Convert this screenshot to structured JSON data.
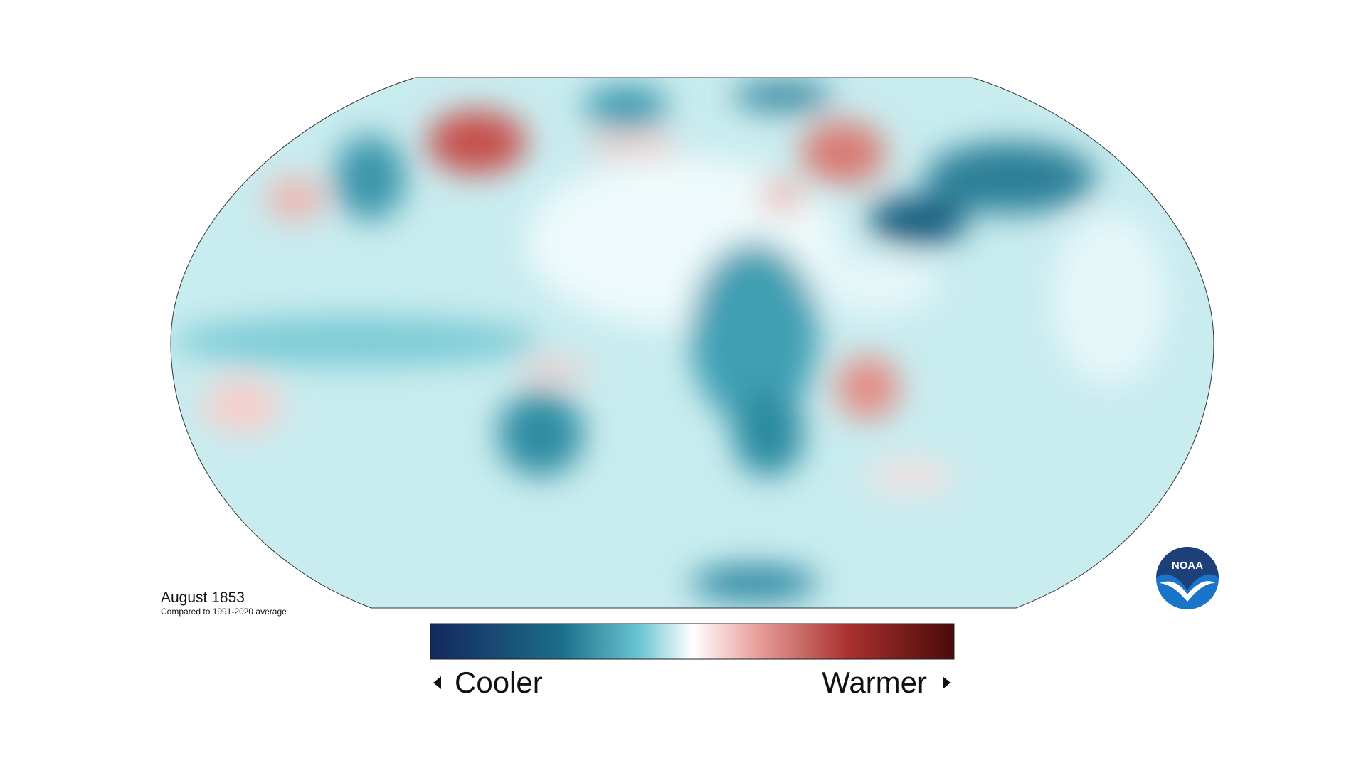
{
  "map": {
    "title": "August 1853",
    "subtitle": "Compared to 1991-2020 average"
  },
  "legend": {
    "low": "Cooler",
    "high": "Warmer"
  },
  "logo": {
    "text": "NOAA"
  }
}
